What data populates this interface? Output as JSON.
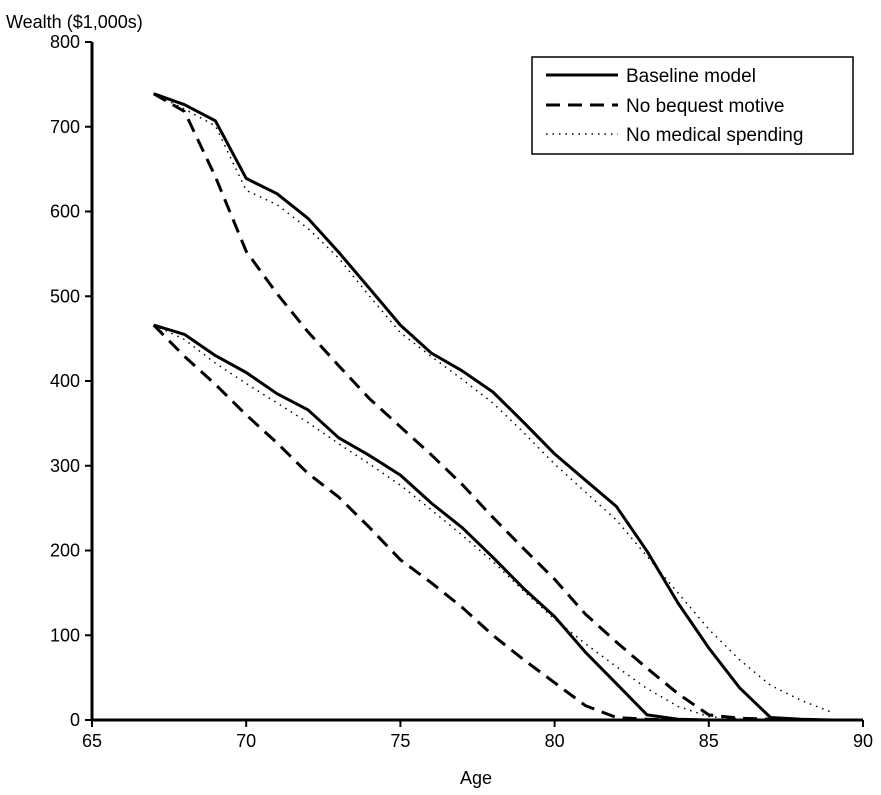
{
  "chart_data": {
    "type": "line",
    "title": "",
    "xlabel": "Age",
    "ylabel": "Wealth ($1,000s)",
    "xlim": [
      65,
      90
    ],
    "ylim": [
      0,
      800
    ],
    "xticks": [
      65,
      70,
      75,
      80,
      85,
      90
    ],
    "yticks": [
      0,
      100,
      200,
      300,
      400,
      500,
      600,
      700,
      800
    ],
    "grid": false,
    "legend_position": "top-right",
    "legend": [
      {
        "label": "Baseline model",
        "style": "solid"
      },
      {
        "label": "No bequest motive",
        "style": "dashed"
      },
      {
        "label": "No medical spending",
        "style": "dotted"
      }
    ],
    "series": [
      {
        "name": "Baseline model",
        "group": "high",
        "style": "solid",
        "x": [
          67,
          68,
          69,
          70,
          71,
          72,
          73,
          74,
          75,
          76,
          77,
          78,
          79,
          80,
          81,
          82,
          83,
          84,
          85,
          86,
          87,
          88,
          89
        ],
        "y": [
          739,
          726,
          707,
          639,
          621,
          592,
          552,
          509,
          466,
          433,
          412,
          387,
          351,
          314,
          283,
          252,
          199,
          138,
          85,
          38,
          3,
          1,
          0
        ]
      },
      {
        "name": "No bequest motive",
        "group": "high",
        "style": "dashed",
        "x": [
          67,
          68,
          69,
          70,
          71,
          72,
          73,
          74,
          75,
          76,
          77,
          78,
          79,
          80,
          81,
          82,
          83,
          84,
          85,
          86,
          87,
          88,
          89
        ],
        "y": [
          739,
          718,
          641,
          553,
          503,
          458,
          418,
          379,
          346,
          313,
          278,
          239,
          202,
          166,
          125,
          92,
          61,
          31,
          6,
          2,
          1,
          0,
          0
        ]
      },
      {
        "name": "No medical spending",
        "group": "high",
        "style": "dotted",
        "x": [
          67,
          68,
          69,
          70,
          71,
          72,
          73,
          74,
          75,
          76,
          77,
          78,
          79,
          80,
          81,
          82,
          83,
          84,
          85,
          86,
          87,
          88,
          89
        ],
        "y": [
          739,
          721,
          701,
          625,
          608,
          580,
          545,
          500,
          457,
          429,
          402,
          374,
          339,
          302,
          269,
          236,
          193,
          150,
          107,
          71,
          41,
          23,
          9
        ]
      },
      {
        "name": "Baseline model",
        "group": "low",
        "style": "solid",
        "x": [
          67,
          68,
          69,
          70,
          71,
          72,
          73,
          74,
          75,
          76,
          77,
          78,
          79,
          80,
          81,
          82,
          83,
          84,
          85,
          86,
          87,
          88,
          89
        ],
        "y": [
          466,
          455,
          430,
          410,
          385,
          366,
          333,
          312,
          289,
          256,
          227,
          192,
          155,
          122,
          80,
          43,
          6,
          1,
          0,
          0,
          0,
          0,
          0
        ]
      },
      {
        "name": "No bequest motive",
        "group": "low",
        "style": "dashed",
        "x": [
          67,
          68,
          69,
          70,
          71,
          72,
          73,
          74,
          75,
          76,
          77,
          78,
          79,
          80,
          81,
          82,
          83,
          84,
          85,
          86,
          87,
          88,
          89
        ],
        "y": [
          466,
          429,
          396,
          360,
          327,
          291,
          263,
          227,
          189,
          162,
          133,
          100,
          71,
          44,
          17,
          3,
          1,
          0,
          0,
          0,
          0,
          0,
          0
        ]
      },
      {
        "name": "No medical spending",
        "group": "low",
        "style": "dotted",
        "x": [
          67,
          68,
          69,
          70,
          71,
          72,
          73,
          74,
          75,
          76,
          77,
          78,
          79,
          80,
          81,
          82,
          83,
          84,
          85,
          86,
          87,
          88,
          89
        ],
        "y": [
          466,
          449,
          421,
          397,
          374,
          351,
          326,
          302,
          277,
          248,
          218,
          187,
          152,
          119,
          90,
          63,
          37,
          16,
          4,
          1,
          0,
          0,
          0
        ]
      }
    ]
  }
}
